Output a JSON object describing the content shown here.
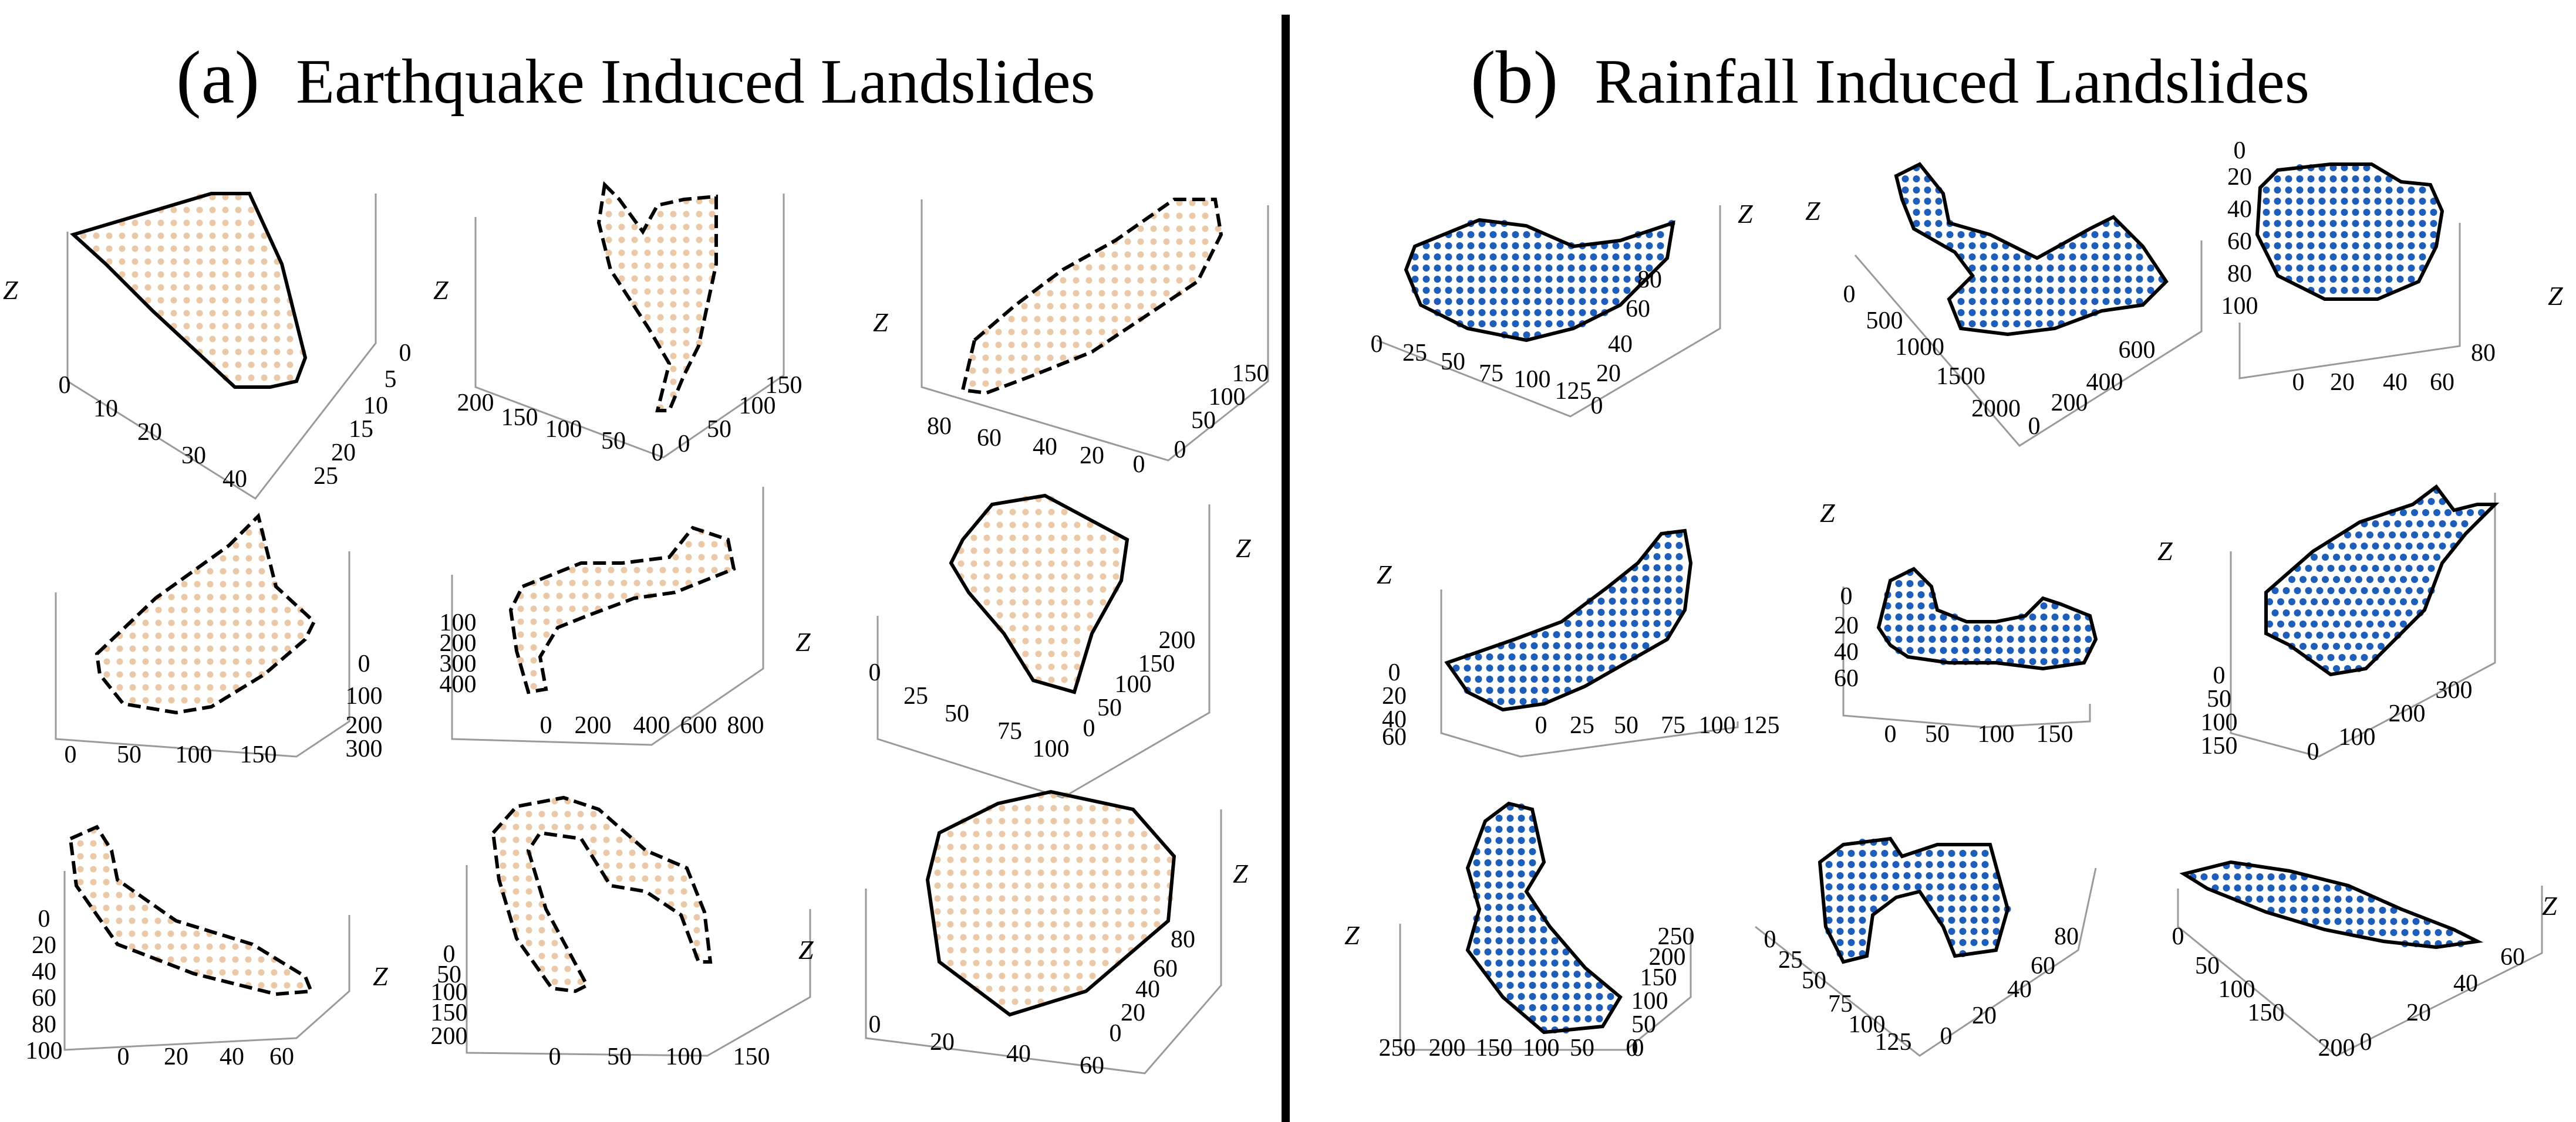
{
  "colors": {
    "earthquake_points": "#ebc8a7",
    "rainfall_points": "#1f5eb8",
    "outline": "#000000",
    "axes": "#9a9a9a"
  },
  "panels": [
    {
      "id": "a",
      "label": "(a)",
      "title": "Earthquake Induced Landslides"
    },
    {
      "id": "b",
      "label": "(b)",
      "title": "Rainfall Induced Landslides"
    }
  ],
  "chart_data": [
    {
      "panel": "a",
      "type": "scatter",
      "z_label": "Z",
      "x_ticks": [
        "0",
        "10",
        "20",
        "30",
        "40"
      ],
      "y_ticks": [
        "0",
        "5",
        "10",
        "15",
        "20",
        "25"
      ]
    },
    {
      "panel": "a",
      "type": "scatter",
      "z_label": "Z",
      "x_ticks": [
        "200",
        "150",
        "100",
        "50",
        "0"
      ],
      "y_ticks": [
        "0",
        "50",
        "100",
        "150"
      ]
    },
    {
      "panel": "a",
      "type": "scatter",
      "z_label": "Z",
      "x_ticks": [
        "80",
        "60",
        "40",
        "20",
        "0"
      ],
      "y_ticks": [
        "0",
        "50",
        "100",
        "150"
      ]
    },
    {
      "panel": "a",
      "type": "scatter",
      "z_label": "",
      "x_ticks": [
        "0",
        "50",
        "100",
        "150"
      ],
      "y_ticks": [
        "0",
        "100",
        "200",
        "300"
      ]
    },
    {
      "panel": "a",
      "type": "scatter",
      "z_label": "Z",
      "x_ticks": [
        "0",
        "200",
        "400",
        "600",
        "800"
      ],
      "y_ticks": [
        "100",
        "200",
        "300",
        "400"
      ]
    },
    {
      "panel": "a",
      "type": "scatter",
      "z_label": "Z",
      "x_ticks": [
        "0",
        "25",
        "50",
        "75",
        "100"
      ],
      "y_ticks": [
        "0",
        "50",
        "100",
        "150",
        "200"
      ]
    },
    {
      "panel": "a",
      "type": "scatter",
      "z_label": "Z",
      "x_ticks": [
        "0",
        "20",
        "40",
        "60"
      ],
      "y_ticks": [
        "0",
        "20",
        "40",
        "60",
        "80",
        "100"
      ]
    },
    {
      "panel": "a",
      "type": "scatter",
      "z_label": "Z",
      "x_ticks": [
        "0",
        "50",
        "100",
        "150"
      ],
      "y_ticks": [
        "0",
        "50",
        "100",
        "150",
        "200"
      ]
    },
    {
      "panel": "a",
      "type": "scatter",
      "z_label": "Z",
      "x_ticks": [
        "0",
        "20",
        "40",
        "60"
      ],
      "y_ticks": [
        "0",
        "20",
        "40",
        "60",
        "80"
      ]
    },
    {
      "panel": "b",
      "type": "scatter",
      "z_label": "Z",
      "x_ticks": [
        "0",
        "25",
        "50",
        "75",
        "100",
        "125"
      ],
      "y_ticks": [
        "0",
        "20",
        "40",
        "60",
        "80"
      ]
    },
    {
      "panel": "b",
      "type": "scatter",
      "z_label": "Z",
      "x_ticks": [
        "0",
        "500",
        "1000",
        "1500",
        "2000"
      ],
      "y_ticks": [
        "0",
        "200",
        "400",
        "600"
      ]
    },
    {
      "panel": "b",
      "type": "scatter",
      "z_label": "Z",
      "x_ticks": [
        "0",
        "20",
        "40",
        "60",
        "80"
      ],
      "y_ticks": [
        "0",
        "20",
        "40",
        "60",
        "80",
        "100"
      ]
    },
    {
      "panel": "b",
      "type": "scatter",
      "z_label": "Z",
      "x_ticks": [
        "0",
        "25",
        "50",
        "75",
        "100",
        "125"
      ],
      "y_ticks": [
        "0",
        "20",
        "40",
        "60"
      ]
    },
    {
      "panel": "b",
      "type": "scatter",
      "z_label": "Z",
      "x_ticks": [
        "0",
        "50",
        "100",
        "150"
      ],
      "y_ticks": [
        "0",
        "20",
        "40",
        "60"
      ]
    },
    {
      "panel": "b",
      "type": "scatter",
      "z_label": "Z",
      "x_ticks": [
        "0",
        "100",
        "200",
        "300"
      ],
      "y_ticks": [
        "0",
        "50",
        "100",
        "150"
      ]
    },
    {
      "panel": "b",
      "type": "scatter",
      "z_label": "Z",
      "x_ticks": [
        "250",
        "200",
        "150",
        "100",
        "50",
        "0"
      ],
      "y_ticks": [
        "0",
        "50",
        "100",
        "150",
        "200",
        "250"
      ]
    },
    {
      "panel": "b",
      "type": "scatter",
      "z_label": "",
      "x_ticks": [
        "0",
        "25",
        "50",
        "75",
        "100",
        "125"
      ],
      "y_ticks": [
        "0",
        "20",
        "40",
        "60",
        "80"
      ]
    },
    {
      "panel": "b",
      "type": "scatter",
      "z_label": "Z",
      "x_ticks": [
        "0",
        "50",
        "100",
        "150",
        "200"
      ],
      "y_ticks": [
        "0",
        "20",
        "40",
        "60"
      ]
    }
  ]
}
